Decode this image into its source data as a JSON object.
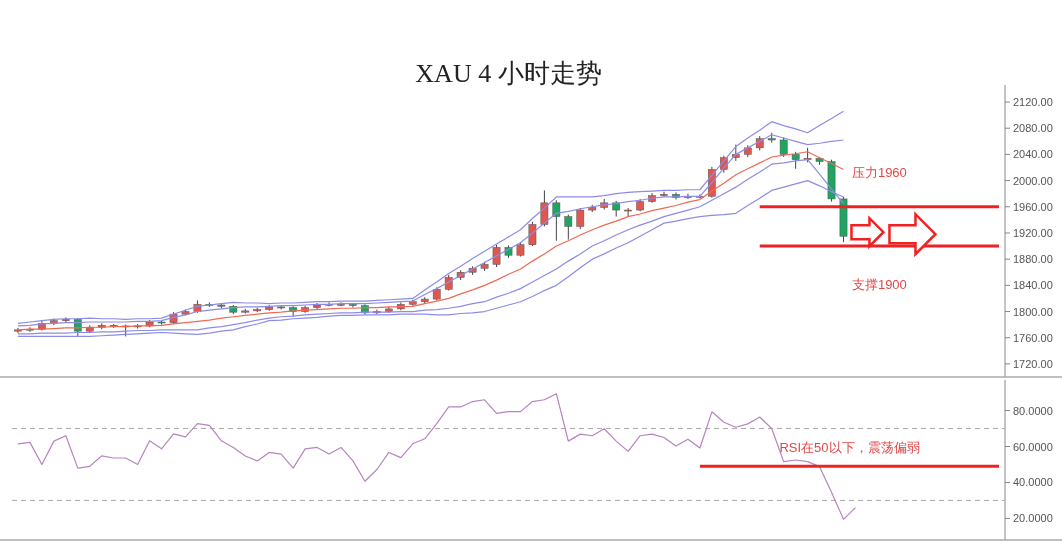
{
  "chart_data": [
    {
      "type": "candlestick",
      "title": "XAU 4 小时走势",
      "categories": [
        null,
        null,
        null,
        null,
        null,
        null,
        null,
        null,
        null,
        null,
        null,
        null,
        null,
        null,
        null,
        null,
        null,
        null,
        null,
        null,
        null,
        null,
        null,
        null,
        null,
        null,
        null,
        null,
        null,
        null,
        null,
        null,
        null,
        null,
        null,
        null,
        null,
        null,
        null,
        null,
        null,
        null,
        null,
        null,
        null,
        null,
        null,
        null,
        null,
        null,
        null,
        null,
        null,
        null,
        null,
        null,
        null,
        null,
        null,
        null,
        null,
        null,
        null,
        null,
        null,
        null,
        null,
        null,
        null,
        null,
        null,
        null,
        null,
        null,
        null,
        null,
        null,
        null,
        null,
        null,
        null,
        null,
        null
      ],
      "ohlc": [
        [
          1770,
          1775,
          1767,
          1772
        ],
        [
          1772,
          1776,
          1769,
          1773
        ],
        [
          1773,
          1786,
          1771,
          1782
        ],
        [
          1782,
          1789,
          1779,
          1786
        ],
        [
          1786,
          1791,
          1783,
          1788
        ],
        [
          1788,
          1790,
          1762,
          1770
        ],
        [
          1770,
          1779,
          1767,
          1776
        ],
        [
          1776,
          1782,
          1773,
          1779
        ],
        [
          1779,
          1781,
          1775,
          1778
        ],
        [
          1778,
          1780,
          1762,
          1777
        ],
        [
          1777,
          1781,
          1774,
          1778
        ],
        [
          1778,
          1787,
          1776,
          1784
        ],
        [
          1784,
          1786,
          1780,
          1783
        ],
        [
          1783,
          1799,
          1781,
          1796
        ],
        [
          1796,
          1803,
          1794,
          1800
        ],
        [
          1800,
          1817,
          1798,
          1811
        ],
        [
          1811,
          1814,
          1807,
          1810
        ],
        [
          1810,
          1812,
          1805,
          1808
        ],
        [
          1808,
          1810,
          1796,
          1799
        ],
        [
          1799,
          1804,
          1797,
          1801
        ],
        [
          1801,
          1806,
          1799,
          1803
        ],
        [
          1803,
          1810,
          1801,
          1807
        ],
        [
          1807,
          1809,
          1803,
          1806
        ],
        [
          1806,
          1808,
          1792,
          1800
        ],
        [
          1800,
          1809,
          1798,
          1806
        ],
        [
          1806,
          1813,
          1804,
          1810
        ],
        [
          1810,
          1814,
          1808,
          1811
        ],
        [
          1811,
          1814,
          1808,
          1811
        ],
        [
          1811,
          1813,
          1806,
          1809
        ],
        [
          1809,
          1811,
          1795,
          1798
        ],
        [
          1798,
          1803,
          1796,
          1800
        ],
        [
          1800,
          1807,
          1798,
          1804
        ],
        [
          1804,
          1814,
          1802,
          1811
        ],
        [
          1811,
          1818,
          1809,
          1815
        ],
        [
          1815,
          1822,
          1813,
          1819
        ],
        [
          1819,
          1837,
          1817,
          1834
        ],
        [
          1834,
          1856,
          1832,
          1852
        ],
        [
          1852,
          1863,
          1848,
          1860
        ],
        [
          1860,
          1869,
          1856,
          1866
        ],
        [
          1866,
          1876,
          1862,
          1872
        ],
        [
          1872,
          1902,
          1868,
          1898
        ],
        [
          1898,
          1901,
          1882,
          1886
        ],
        [
          1886,
          1906,
          1884,
          1902
        ],
        [
          1902,
          1937,
          1900,
          1933
        ],
        [
          1933,
          1985,
          1930,
          1966
        ],
        [
          1966,
          1970,
          1908,
          1945
        ],
        [
          1945,
          1948,
          1910,
          1930
        ],
        [
          1930,
          1958,
          1926,
          1955
        ],
        [
          1955,
          1963,
          1952,
          1959
        ],
        [
          1959,
          1972,
          1956,
          1966
        ],
        [
          1966,
          1969,
          1945,
          1955
        ],
        [
          1955,
          1958,
          1945,
          1955
        ],
        [
          1955,
          1972,
          1953,
          1968
        ],
        [
          1968,
          1981,
          1966,
          1977
        ],
        [
          1977,
          1983,
          1975,
          1979
        ],
        [
          1979,
          1982,
          1971,
          1974
        ],
        [
          1974,
          1980,
          1972,
          1976
        ],
        [
          1976,
          1979,
          1973,
          1976
        ],
        [
          1976,
          2021,
          1974,
          2017
        ],
        [
          2017,
          2038,
          2012,
          2035
        ],
        [
          2035,
          2055,
          2030,
          2040
        ],
        [
          2040,
          2054,
          2036,
          2050
        ],
        [
          2050,
          2068,
          2046,
          2064
        ],
        [
          2064,
          2073,
          2058,
          2062
        ],
        [
          2062,
          2066,
          2036,
          2040
        ],
        [
          2040,
          2044,
          2018,
          2032
        ],
        [
          2032,
          2050,
          2028,
          2034
        ],
        [
          2034,
          2036,
          2024,
          2029
        ],
        [
          2029,
          2032,
          1968,
          1972
        ],
        [
          1972,
          1975,
          1906,
          1915
        ],
        null,
        null,
        null,
        null,
        null,
        null,
        null,
        null,
        null,
        null,
        null,
        null,
        null
      ],
      "colors": [
        "#e0574f",
        "#e0574f",
        "#e0574f",
        "#e0574f",
        "#e0574f",
        "#1fa463",
        "#e0574f",
        "#e0574f",
        "#1fa463",
        "#1fa463",
        "#e0574f",
        "#e0574f",
        "#1fa463",
        "#e0574f",
        "#e0574f",
        "#e0574f",
        "#1fa463",
        "#1fa463",
        "#1fa463",
        "#e0574f",
        "#e0574f",
        "#e0574f",
        "#1fa463",
        "#1fa463",
        "#e0574f",
        "#e0574f",
        "#e0574f",
        "#e0574f",
        "#1fa463",
        "#1fa463",
        "#e0574f",
        "#e0574f",
        "#e0574f",
        "#e0574f",
        "#e0574f",
        "#e0574f",
        "#e0574f",
        "#e0574f",
        "#e0574f",
        "#e0574f",
        "#e0574f",
        "#1fa463",
        "#e0574f",
        "#e0574f",
        "#e0574f",
        "#1fa463",
        "#1fa463",
        "#e0574f",
        "#e0574f",
        "#e0574f",
        "#1fa463",
        "#e0574f",
        "#e0574f",
        "#e0574f",
        "#e0574f",
        "#1fa463",
        "#e0574f",
        "#e0574f",
        "#e0574f",
        "#e0574f",
        "#e0574f",
        "#e0574f",
        "#e0574f",
        "#1fa463",
        "#1fa463",
        "#1fa463",
        "#e0574f",
        "#1fa463",
        "#1fa463",
        "#1fa463",
        null,
        null,
        null,
        null,
        null,
        null,
        null,
        null,
        null,
        null,
        null,
        null,
        null
      ],
      "series": [
        {
          "type": "line",
          "color": "#8c8ce6",
          "values": [
            1782,
            1784,
            1786,
            1788,
            1789,
            1789,
            1790,
            1789,
            1789,
            1788,
            1789,
            1789,
            1790,
            1796,
            1802,
            1808,
            1810,
            1812,
            1814,
            1813,
            1813,
            1812,
            1813,
            1813,
            1814,
            1815,
            1815,
            1816,
            1816,
            1816,
            1817,
            1818,
            1819,
            1820,
            1833,
            1845,
            1858,
            1869,
            1881,
            1892,
            1903,
            1914,
            1925,
            1942,
            1958,
            1975,
            1975,
            1975,
            1975,
            1977,
            1980,
            1982,
            1983,
            1984,
            1985,
            1985,
            1986,
            1986,
            2008,
            2030,
            2052,
            2065,
            2077,
            2090,
            2084,
            2079,
            2073,
            2084,
            2095,
            2106,
            null,
            null,
            null,
            null,
            null,
            null,
            null,
            null,
            null,
            null,
            null,
            null,
            null
          ]
        },
        {
          "type": "line",
          "color": "#8c8ce6",
          "values": [
            1778,
            1779,
            1781,
            1782,
            1783,
            1783,
            1784,
            1784,
            1784,
            1784,
            1785,
            1785,
            1786,
            1791,
            1795,
            1800,
            1802,
            1804,
            1806,
            1807,
            1807,
            1808,
            1809,
            1809,
            1810,
            1811,
            1811,
            1812,
            1812,
            1812,
            1813,
            1814,
            1815,
            1816,
            1826,
            1835,
            1845,
            1855,
            1865,
            1875,
            1885,
            1895,
            1905,
            1920,
            1935,
            1950,
            1953,
            1957,
            1960,
            1963,
            1965,
            1968,
            1970,
            1973,
            1975,
            1975,
            1976,
            1976,
            1997,
            2019,
            2040,
            2050,
            2060,
            2070,
            2065,
            2060,
            2055,
            2057,
            2060,
            2062,
            null,
            null,
            null,
            null,
            null,
            null,
            null,
            null,
            null,
            null,
            null,
            null,
            null
          ]
        },
        {
          "type": "line",
          "color": "#ee6a55",
          "values": [
            1772,
            1773,
            1773,
            1774,
            1775,
            1775,
            1776,
            1776,
            1777,
            1777,
            1778,
            1778,
            1779,
            1781,
            1783,
            1785,
            1787,
            1790,
            1792,
            1794,
            1796,
            1798,
            1799,
            1801,
            1802,
            1803,
            1804,
            1805,
            1805,
            1806,
            1806,
            1807,
            1807,
            1808,
            1812,
            1816,
            1820,
            1827,
            1833,
            1840,
            1848,
            1857,
            1865,
            1877,
            1888,
            1900,
            1908,
            1917,
            1925,
            1932,
            1938,
            1945,
            1949,
            1954,
            1958,
            1962,
            1967,
            1971,
            1984,
            1996,
            2009,
            2018,
            2027,
            2036,
            2039,
            2041,
            2044,
            2035,
            2026,
            2017,
            null,
            null,
            null,
            null,
            null,
            null,
            null,
            null,
            null,
            null,
            null,
            null,
            null
          ]
        },
        {
          "type": "line",
          "color": "#8c8ce6",
          "values": [
            1766,
            1766,
            1767,
            1767,
            1767,
            1768,
            1768,
            1769,
            1769,
            1770,
            1771,
            1771,
            1772,
            1772,
            1772,
            1772,
            1775,
            1777,
            1780,
            1783,
            1787,
            1790,
            1792,
            1793,
            1795,
            1796,
            1797,
            1798,
            1798,
            1799,
            1799,
            1799,
            1800,
            1800,
            1802,
            1803,
            1805,
            1808,
            1812,
            1815,
            1822,
            1828,
            1835,
            1845,
            1855,
            1865,
            1877,
            1888,
            1900,
            1908,
            1917,
            1925,
            1932,
            1938,
            1945,
            1950,
            1955,
            1960,
            1970,
            1980,
            1990,
            2002,
            2013,
            2025,
            2027,
            2030,
            2032,
            2010,
            1987,
            1965,
            null,
            null,
            null,
            null,
            null,
            null,
            null,
            null,
            null,
            null,
            null,
            null,
            null
          ]
        },
        {
          "type": "line",
          "color": "#8c8ce6",
          "values": [
            1762,
            1762,
            1762,
            1762,
            1762,
            1762,
            1762,
            1763,
            1764,
            1765,
            1766,
            1767,
            1768,
            1767,
            1766,
            1765,
            1767,
            1770,
            1772,
            1777,
            1781,
            1786,
            1787,
            1789,
            1790,
            1791,
            1793,
            1794,
            1794,
            1795,
            1795,
            1795,
            1796,
            1796,
            1796,
            1795,
            1795,
            1797,
            1798,
            1800,
            1805,
            1810,
            1815,
            1823,
            1832,
            1840,
            1853,
            1867,
            1880,
            1888,
            1897,
            1905,
            1915,
            1925,
            1935,
            1938,
            1942,
            1945,
            1947,
            1948,
            1950,
            1962,
            1973,
            1985,
            1990,
            1995,
            2000,
            1992,
            1983,
            1975,
            null,
            null,
            null,
            null,
            null,
            null,
            null,
            null,
            null,
            null,
            null,
            null,
            null
          ]
        },
        {
          "type": "line",
          "color": "#ee2222",
          "values": [
            null,
            null,
            null,
            null,
            null,
            null,
            null,
            null,
            null,
            null,
            null,
            null,
            null,
            null,
            null,
            null,
            null,
            null,
            null,
            null,
            null,
            null,
            null,
            null,
            null,
            null,
            null,
            null,
            null,
            null,
            null,
            null,
            null,
            null,
            null,
            null,
            null,
            null,
            null,
            null,
            null,
            null,
            null,
            null,
            null,
            null,
            null,
            null,
            null,
            null,
            null,
            null,
            null,
            null,
            null,
            null,
            null,
            null,
            null,
            null,
            null,
            null,
            1960,
            1960,
            1960,
            1960,
            1960,
            1960,
            1960,
            1960,
            1960,
            1960,
            1960,
            1960,
            1960,
            1960,
            1960,
            1960,
            1960,
            1960,
            1960,
            1960,
            1960
          ]
        },
        {
          "type": "line",
          "color": "#ee2222",
          "values": [
            null,
            null,
            null,
            null,
            null,
            null,
            null,
            null,
            null,
            null,
            null,
            null,
            null,
            null,
            null,
            null,
            null,
            null,
            null,
            null,
            null,
            null,
            null,
            null,
            null,
            null,
            null,
            null,
            null,
            null,
            null,
            null,
            null,
            null,
            null,
            null,
            null,
            null,
            null,
            null,
            null,
            null,
            null,
            null,
            null,
            null,
            null,
            null,
            null,
            null,
            null,
            null,
            null,
            null,
            null,
            null,
            null,
            null,
            null,
            null,
            null,
            null,
            1900,
            1900,
            1900,
            1900,
            1900,
            1900,
            1900,
            1900,
            1900,
            1900,
            1900,
            1900,
            1900,
            1900,
            1900,
            1900,
            1900,
            1900,
            1900,
            1900,
            1900
          ]
        }
      ],
      "ylim": [
        1700,
        2146
      ],
      "yticks": [
        {
          "value": 1720,
          "label": "1720.00"
        },
        {
          "value": 1760,
          "label": "1760.00"
        },
        {
          "value": 1800,
          "label": "1800.00"
        },
        {
          "value": 1840,
          "label": "1840.00"
        },
        {
          "value": 1880,
          "label": "1880.00"
        },
        {
          "value": 1920,
          "label": "1920.00"
        },
        {
          "value": 1960,
          "label": "1960.00"
        },
        {
          "value": 2000,
          "label": "2000.00"
        },
        {
          "value": 2040,
          "label": "2040.00"
        },
        {
          "value": 2080,
          "label": "2080.00"
        },
        {
          "value": 2120,
          "label": "2120.00"
        }
      ],
      "annotations": [
        "压力1960",
        "支撑1900"
      ],
      "tick_labels": "y"
    },
    {
      "type": "line",
      "categories": [
        null,
        null,
        null,
        null,
        null,
        null,
        null,
        null,
        null,
        null,
        null,
        null,
        null,
        null,
        null,
        null,
        null,
        null,
        null,
        null,
        null,
        null,
        null,
        null,
        null,
        null,
        null,
        null,
        null,
        null,
        null,
        null,
        null,
        null,
        null,
        null,
        null,
        null,
        null,
        null,
        null,
        null,
        null,
        null,
        null,
        null,
        null,
        null,
        null,
        null,
        null,
        null,
        null,
        null,
        null,
        null,
        null,
        null,
        null,
        null,
        null,
        null,
        null,
        null,
        null,
        null,
        null,
        null,
        null,
        null,
        null,
        null,
        null,
        null,
        null,
        null,
        null,
        null,
        null,
        null,
        null,
        null,
        null
      ],
      "series": [
        {
          "color": "#b784c0",
          "values": [
            61.5,
            62.3,
            50,
            63,
            66,
            48,
            49,
            54.8,
            53.6,
            53.6,
            50,
            63.2,
            58.7,
            67,
            65.4,
            72.7,
            71.8,
            63.2,
            59.5,
            54.7,
            52,
            56.7,
            55.8,
            48,
            58.7,
            59.5,
            55.8,
            59.5,
            52,
            40.7,
            47.2,
            56.7,
            53.8,
            61.5,
            64.3,
            72.7,
            82,
            82,
            85,
            86,
            78.4,
            79.4,
            79.4,
            85,
            86,
            89.4,
            63,
            66.9,
            66,
            69.9,
            63,
            57.3,
            66,
            66.9,
            65,
            60.3,
            64,
            59.2,
            79.3,
            73.5,
            70.7,
            72.6,
            76.4,
            70,
            51.6,
            52.5,
            51.6,
            48.8,
            34.6,
            19.5,
            26,
            null,
            null,
            null,
            null,
            null,
            null,
            null,
            null,
            null,
            null,
            null,
            null
          ]
        },
        {
          "type": "line",
          "color": "#ee2222",
          "values": [
            null,
            null,
            null,
            null,
            null,
            null,
            null,
            null,
            null,
            null,
            null,
            null,
            null,
            null,
            null,
            null,
            null,
            null,
            null,
            null,
            null,
            null,
            null,
            null,
            null,
            null,
            null,
            null,
            null,
            null,
            null,
            null,
            null,
            null,
            null,
            null,
            null,
            null,
            null,
            null,
            null,
            null,
            null,
            null,
            null,
            null,
            null,
            null,
            null,
            null,
            null,
            null,
            null,
            null,
            null,
            null,
            null,
            49,
            49,
            49,
            49,
            49,
            49,
            49,
            49,
            49,
            49,
            49,
            49,
            49,
            49,
            49,
            49,
            49,
            49,
            49,
            49,
            49,
            49,
            49,
            49,
            49,
            49
          ]
        }
      ],
      "ref_lines": [
        {
          "axis": "y",
          "value": 70,
          "color": "#aaaaaa",
          "line_style": "dashed"
        },
        {
          "axis": "y",
          "value": 30,
          "color": "#aaaaaa",
          "line_style": "dashed"
        }
      ],
      "ylim": [
        8,
        97
      ],
      "yticks": [
        {
          "value": 20,
          "label": "20.0000"
        },
        {
          "value": 40,
          "label": "40.0000"
        },
        {
          "value": 60,
          "label": "60.0000"
        },
        {
          "value": 80,
          "label": "80.0000"
        }
      ],
      "annotations": [
        "RSI在50以下，震荡偏弱"
      ],
      "tick_labels": "y"
    }
  ]
}
